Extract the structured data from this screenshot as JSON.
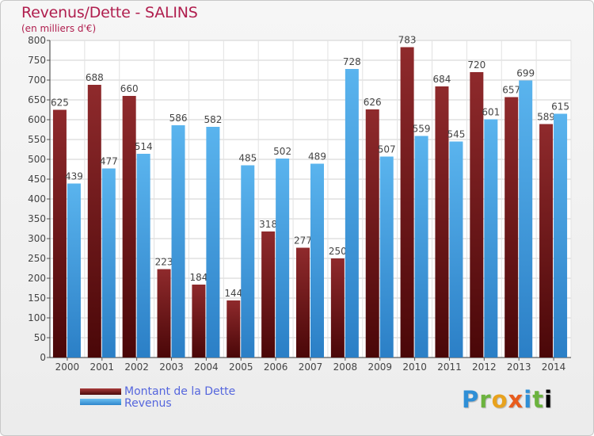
{
  "chart_data": {
    "type": "bar",
    "title": "Revenus/Dette - SALINS",
    "subtitle": "(en milliers d'€)",
    "categories": [
      "2000",
      "2001",
      "2002",
      "2003",
      "2004",
      "2005",
      "2006",
      "2007",
      "2008",
      "2009",
      "2010",
      "2011",
      "2012",
      "2013",
      "2014"
    ],
    "series": [
      {
        "name": "Montant de la Dette",
        "color": "#7a1c1e",
        "values": [
          625,
          688,
          660,
          223,
          184,
          144,
          318,
          277,
          250,
          626,
          783,
          684,
          720,
          657,
          589
        ]
      },
      {
        "name": "Revenus",
        "color": "#45a3e5",
        "values": [
          439,
          477,
          514,
          586,
          582,
          485,
          502,
          489,
          728,
          507,
          559,
          545,
          601,
          699,
          615
        ]
      }
    ],
    "ylim": [
      0,
      800
    ],
    "yticks": [
      0,
      50,
      100,
      150,
      200,
      250,
      300,
      350,
      400,
      450,
      500,
      550,
      600,
      650,
      700,
      750,
      800
    ],
    "grid": true,
    "legend_position": "bottom-left"
  },
  "logo": {
    "text": [
      "P",
      "r",
      "o",
      "x",
      "i",
      "t",
      "i"
    ]
  }
}
